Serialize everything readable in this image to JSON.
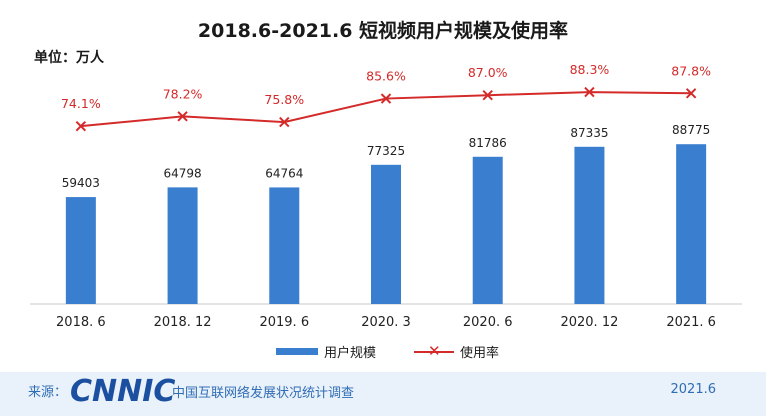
{
  "title": "2018.6-2021.6 短视频用户规模及使用率",
  "unit_label": "单位：万人",
  "legend": {
    "bar_label": "用户规模",
    "line_label": "使用率",
    "line_marker": "✕"
  },
  "footer": {
    "source_label": "来源：",
    "logo_text": "CNNIC",
    "source_name": "中国互联网络发展状况统计调查",
    "date": "2021.6"
  },
  "colors": {
    "bar": "#3a7fcf",
    "line": "#d42a2a",
    "footer_bg": "#e9f1fa"
  },
  "chart_data": {
    "type": "bar",
    "title": "2018.6-2021.6 短视频用户规模及使用率",
    "xlabel": "",
    "ylabel": "",
    "categories": [
      "2018. 6",
      "2018. 12",
      "2019. 6",
      "2020. 3",
      "2020. 6",
      "2020. 12",
      "2021. 6"
    ],
    "series": [
      {
        "name": "用户规模",
        "type": "bar",
        "values": [
          59403,
          64798,
          64764,
          77325,
          81786,
          87335,
          88775
        ],
        "labels": [
          "59403",
          "64798",
          "64764",
          "77325",
          "81786",
          "87335",
          "88775"
        ]
      },
      {
        "name": "使用率",
        "type": "line",
        "values": [
          74.1,
          78.2,
          75.8,
          85.6,
          87.0,
          88.3,
          87.8
        ],
        "labels": [
          "74.1%",
          "78.2%",
          "75.8%",
          "85.6%",
          "87.0%",
          "88.3%",
          "87.8%"
        ]
      }
    ],
    "ylim_bars": [
      0,
      160000
    ],
    "ylim_line": [
      0,
      120
    ],
    "grid": false,
    "legend_position": "bottom"
  }
}
